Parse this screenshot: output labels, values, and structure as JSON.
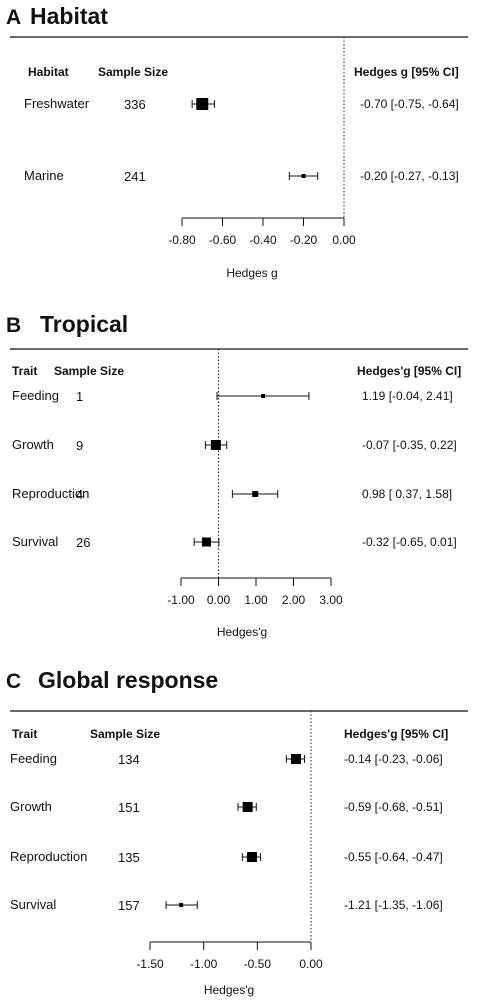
{
  "chart_data": [
    {
      "type": "forest",
      "letter": "A",
      "title": "Habitat",
      "row_header": "Habitat",
      "n_header": "Sample Size",
      "ci_header": "Hedges g [95% CI]",
      "xlabel": "Hedges g",
      "xlim": [
        -0.8,
        0.0
      ],
      "ticks": [
        "-0.80",
        "-0.60",
        "-0.40",
        "-0.20",
        "0.00"
      ],
      "tick_values": [
        -0.8,
        -0.6,
        -0.4,
        -0.2,
        0.0
      ],
      "reference_line": 0,
      "rows": [
        {
          "label": "Freshwater",
          "n": "336",
          "estimate": -0.7,
          "lower": -0.75,
          "upper": -0.64,
          "ci_text": "-0.70 [-0.75, -0.64]"
        },
        {
          "label": "Marine",
          "n": "241",
          "estimate": -0.2,
          "lower": -0.27,
          "upper": -0.13,
          "ci_text": "-0.20 [-0.27, -0.13]"
        }
      ]
    },
    {
      "type": "forest",
      "letter": "B",
      "title": "Tropical",
      "row_header": "Trait",
      "n_header": "Sample Size",
      "ci_header": "Hedges'g [95% CI]",
      "xlabel": "Hedges'g",
      "xlim": [
        -1.0,
        3.0
      ],
      "ticks": [
        "-1.00",
        "0.00",
        "1.00",
        "2.00",
        "3.00"
      ],
      "tick_values": [
        -1.0,
        0.0,
        1.0,
        2.0,
        3.0
      ],
      "reference_line": 0,
      "rows": [
        {
          "label": "Feeding",
          "n": "1",
          "estimate": 1.19,
          "lower": -0.04,
          "upper": 2.41,
          "ci_text": "1.19 [-0.04, 2.41]"
        },
        {
          "label": "Growth",
          "n": "9",
          "estimate": -0.07,
          "lower": -0.35,
          "upper": 0.22,
          "ci_text": "-0.07 [-0.35, 0.22]"
        },
        {
          "label": "Reproduction",
          "n": "4",
          "estimate": 0.98,
          "lower": 0.37,
          "upper": 1.58,
          "ci_text": "0.98 [ 0.37, 1.58]"
        },
        {
          "label": "Survival",
          "n": "26",
          "estimate": -0.32,
          "lower": -0.65,
          "upper": 0.01,
          "ci_text": "-0.32 [-0.65, 0.01]"
        }
      ]
    },
    {
      "type": "forest",
      "letter": "C",
      "title": "Global response",
      "row_header": "Trait",
      "n_header": "Sample Size",
      "ci_header": "Hedges'g [95% CI]",
      "xlabel": "Hedges'g",
      "xlim": [
        -1.5,
        0.0
      ],
      "ticks": [
        "-1.50",
        "-1.00",
        "-0.50",
        "0.00"
      ],
      "tick_values": [
        -1.5,
        -1.0,
        -0.5,
        0.0
      ],
      "reference_line": 0,
      "rows": [
        {
          "label": "Feeding",
          "n": "134",
          "estimate": -0.14,
          "lower": -0.23,
          "upper": -0.06,
          "ci_text": "-0.14 [-0.23, -0.06]"
        },
        {
          "label": "Growth",
          "n": "151",
          "estimate": -0.59,
          "lower": -0.68,
          "upper": -0.51,
          "ci_text": "-0.59 [-0.68, -0.51]"
        },
        {
          "label": "Reproduction",
          "n": "135",
          "estimate": -0.55,
          "lower": -0.64,
          "upper": -0.47,
          "ci_text": "-0.55 [-0.64, -0.47]"
        },
        {
          "label": "Survival",
          "n": "157",
          "estimate": -1.21,
          "lower": -1.35,
          "upper": -1.06,
          "ci_text": "-1.21 [-1.35, -1.06]"
        }
      ]
    }
  ]
}
